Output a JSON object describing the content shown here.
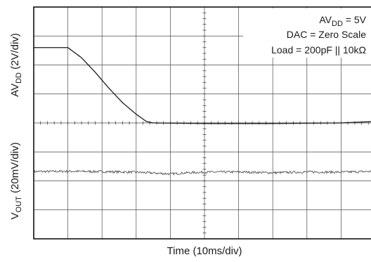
{
  "chart_data": {
    "type": "line",
    "xlabel": "Time (10ms/div)",
    "x_divisions": 10,
    "y_divisions": 8,
    "xlim_div": [
      0,
      10
    ],
    "ylim_div": [
      0,
      8
    ],
    "grid": true,
    "ylabels": [
      {
        "prefix": "AV",
        "sub": "DD",
        "suffix": " (2V/div)"
      },
      {
        "prefix": "V",
        "sub": "OUT",
        "suffix": " (20mV/div)"
      }
    ],
    "annotations": [
      {
        "prefix": "AV",
        "sub": "DD",
        "suffix": " = 5V"
      },
      {
        "prefix": "",
        "sub": "",
        "suffix": "DAC = Zero Scale"
      },
      {
        "prefix": "",
        "sub": "",
        "suffix": "Load = 200pF || 10kΩ"
      }
    ],
    "series": [
      {
        "name": "AVDD",
        "x_div": [
          0,
          1.0,
          1.4,
          1.8,
          2.2,
          2.6,
          3.0,
          3.3,
          3.5,
          5.0,
          7.0,
          8.0,
          9.0,
          10.0
        ],
        "y_div": [
          6.6,
          6.6,
          6.25,
          5.75,
          5.2,
          4.7,
          4.3,
          4.05,
          4.0,
          3.98,
          3.98,
          3.99,
          4.0,
          4.05
        ]
      },
      {
        "name": "VOUT",
        "noise_div": 0.04,
        "x_div": [
          0,
          1.0,
          2.0,
          3.0,
          4.0,
          4.5,
          5.0,
          6.0,
          7.0,
          8.0,
          9.0,
          10.0
        ],
        "y_div": [
          2.32,
          2.33,
          2.32,
          2.3,
          2.24,
          2.28,
          2.3,
          2.31,
          2.28,
          2.31,
          2.3,
          2.33
        ]
      }
    ]
  }
}
